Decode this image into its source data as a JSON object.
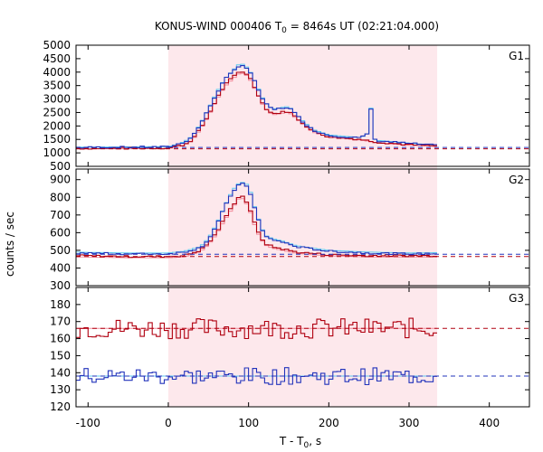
{
  "chart_data": {
    "type": "line",
    "title": "KONUS-WIND 000406 T",
    "title_sub": "0",
    "title_rest": " = 8464s UT (02:21:04.000)",
    "xlabel": "T - T",
    "xlabel_sub": "0",
    "xlabel_rest": ", s",
    "ylabel": "counts / sec",
    "xlim": [
      -115,
      450
    ],
    "x_ticks": [
      -100,
      0,
      100,
      200,
      300,
      400
    ],
    "shaded_interval": [
      0,
      335
    ],
    "colors": {
      "shade": "#fde8ec",
      "dark_red": "#b00010",
      "pink": "#f28b9a",
      "dark_blue": "#2233bb",
      "light_blue": "#5cc8f0"
    },
    "panels": [
      {
        "label": "G1",
        "ylim": [
          500,
          5000
        ],
        "y_ticks": [
          500,
          1000,
          1500,
          2000,
          2500,
          3000,
          3500,
          4000,
          4500,
          5000
        ],
        "bg_red": 1150,
        "bg_blue": 1200,
        "curve_red": [
          [
            -115,
            1170
          ],
          [
            -50,
            1170
          ],
          [
            0,
            1180
          ],
          [
            10,
            1250
          ],
          [
            20,
            1300
          ],
          [
            30,
            1500
          ],
          [
            40,
            1900
          ],
          [
            50,
            2400
          ],
          [
            60,
            3000
          ],
          [
            70,
            3500
          ],
          [
            80,
            3800
          ],
          [
            90,
            4050
          ],
          [
            100,
            3900
          ],
          [
            110,
            3300
          ],
          [
            120,
            2700
          ],
          [
            130,
            2450
          ],
          [
            140,
            2500
          ],
          [
            150,
            2550
          ],
          [
            160,
            2300
          ],
          [
            170,
            2050
          ],
          [
            180,
            1800
          ],
          [
            200,
            1600
          ],
          [
            220,
            1550
          ],
          [
            240,
            1500
          ],
          [
            250,
            1450
          ],
          [
            260,
            1400
          ],
          [
            280,
            1350
          ],
          [
            300,
            1300
          ],
          [
            320,
            1280
          ],
          [
            335,
            1250
          ]
        ],
        "curve_blue": [
          [
            -115,
            1200
          ],
          [
            -50,
            1210
          ],
          [
            0,
            1220
          ],
          [
            10,
            1300
          ],
          [
            20,
            1400
          ],
          [
            30,
            1600
          ],
          [
            40,
            2050
          ],
          [
            50,
            2600
          ],
          [
            60,
            3200
          ],
          [
            70,
            3700
          ],
          [
            80,
            4000
          ],
          [
            90,
            4300
          ],
          [
            100,
            4100
          ],
          [
            110,
            3500
          ],
          [
            120,
            2850
          ],
          [
            130,
            2600
          ],
          [
            140,
            2650
          ],
          [
            150,
            2700
          ],
          [
            160,
            2400
          ],
          [
            170,
            2100
          ],
          [
            180,
            1850
          ],
          [
            200,
            1650
          ],
          [
            220,
            1600
          ],
          [
            240,
            1550
          ],
          [
            248,
            1700
          ],
          [
            252,
            2800
          ],
          [
            256,
            1500
          ],
          [
            260,
            1450
          ],
          [
            280,
            1400
          ],
          [
            300,
            1350
          ],
          [
            320,
            1300
          ],
          [
            335,
            1280
          ]
        ]
      },
      {
        "label": "G2",
        "ylim": [
          300,
          960
        ],
        "y_ticks": [
          300,
          400,
          500,
          600,
          700,
          800,
          900
        ],
        "bg_red": 465,
        "bg_blue": 478,
        "curve_red": [
          [
            -115,
            470
          ],
          [
            -50,
            465
          ],
          [
            0,
            465
          ],
          [
            20,
            470
          ],
          [
            40,
            500
          ],
          [
            50,
            540
          ],
          [
            60,
            600
          ],
          [
            70,
            680
          ],
          [
            80,
            750
          ],
          [
            90,
            820
          ],
          [
            100,
            760
          ],
          [
            110,
            620
          ],
          [
            120,
            540
          ],
          [
            130,
            520
          ],
          [
            140,
            510
          ],
          [
            160,
            490
          ],
          [
            200,
            475
          ],
          [
            250,
            470
          ],
          [
            300,
            470
          ],
          [
            335,
            470
          ]
        ],
        "curve_blue": [
          [
            -115,
            485
          ],
          [
            -50,
            480
          ],
          [
            0,
            480
          ],
          [
            20,
            490
          ],
          [
            40,
            515
          ],
          [
            50,
            560
          ],
          [
            60,
            640
          ],
          [
            70,
            740
          ],
          [
            80,
            830
          ],
          [
            90,
            880
          ],
          [
            100,
            860
          ],
          [
            110,
            700
          ],
          [
            120,
            580
          ],
          [
            130,
            560
          ],
          [
            140,
            550
          ],
          [
            160,
            520
          ],
          [
            200,
            495
          ],
          [
            250,
            485
          ],
          [
            300,
            480
          ],
          [
            335,
            482
          ]
        ]
      },
      {
        "label": "G3",
        "ylim": [
          120,
          190
        ],
        "y_ticks": [
          120,
          130,
          140,
          150,
          160,
          170,
          180
        ],
        "bg_red": 166,
        "bg_blue": 138,
        "red_mean": 166,
        "blue_mean": 138,
        "red_amp": 6,
        "blue_amp": 5
      }
    ]
  }
}
